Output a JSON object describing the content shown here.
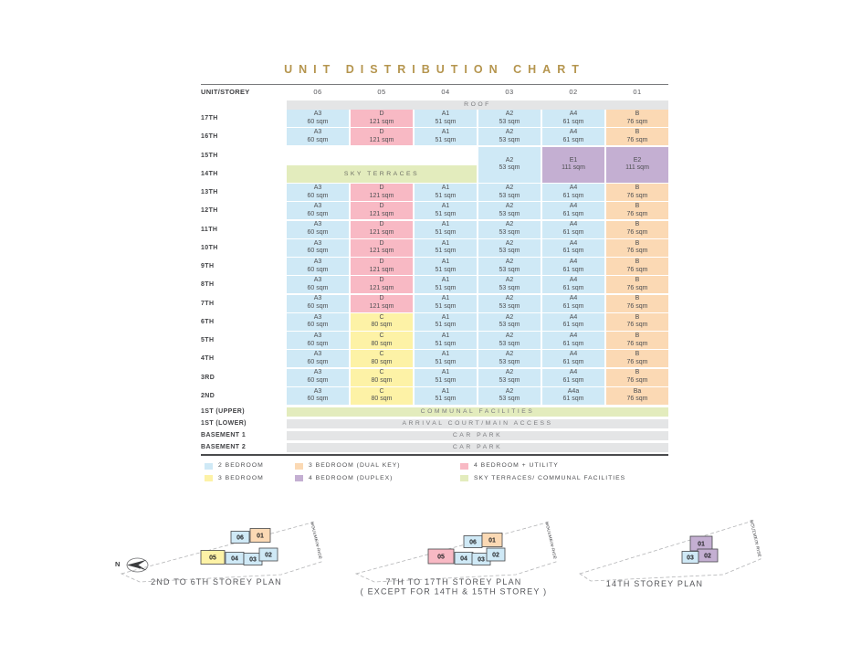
{
  "title": "UNIT DISTRIBUTION CHART",
  "colors": {
    "2_bedroom": "#cfe9f6",
    "3_bedroom": "#fdf2a6",
    "3_bedroom_dual_key": "#fbd9b4",
    "4_bedroom_duplex": "#c4afd2",
    "4_bedroom_utility": "#f8b9c4",
    "sky_terraces": "#e3ecbd",
    "facility_bar": "#e4e5e6",
    "title_gold": "#b5954e"
  },
  "table": {
    "corner_label": "UNIT/STOREY",
    "columns": [
      "06",
      "05",
      "04",
      "03",
      "02",
      "01"
    ],
    "roof": {
      "label": "ROOF"
    },
    "storey_rows": [
      {
        "storey": "17TH",
        "cells": [
          [
            "A3",
            "60 sqm",
            "2_bedroom"
          ],
          [
            "D",
            "121 sqm",
            "4_bedroom_utility"
          ],
          [
            "A1",
            "51 sqm",
            "2_bedroom"
          ],
          [
            "A2",
            "53 sqm",
            "2_bedroom"
          ],
          [
            "A4",
            "61 sqm",
            "2_bedroom"
          ],
          [
            "B",
            "76 sqm",
            "3_bedroom_dual_key"
          ]
        ]
      },
      {
        "storey": "16TH",
        "cells": [
          [
            "A3",
            "60 sqm",
            "2_bedroom"
          ],
          [
            "D",
            "121 sqm",
            "4_bedroom_utility"
          ],
          [
            "A1",
            "51 sqm",
            "2_bedroom"
          ],
          [
            "A2",
            "53 sqm",
            "2_bedroom"
          ],
          [
            "A4",
            "61 sqm",
            "2_bedroom"
          ],
          [
            "B",
            "76 sqm",
            "3_bedroom_dual_key"
          ]
        ]
      },
      {
        "storey": "15TH",
        "special": true
      },
      {
        "storey": "14TH",
        "special": true
      },
      {
        "storey": "13TH",
        "cells": [
          [
            "A3",
            "60 sqm",
            "2_bedroom"
          ],
          [
            "D",
            "121 sqm",
            "4_bedroom_utility"
          ],
          [
            "A1",
            "51 sqm",
            "2_bedroom"
          ],
          [
            "A2",
            "53 sqm",
            "2_bedroom"
          ],
          [
            "A4",
            "61 sqm",
            "2_bedroom"
          ],
          [
            "B",
            "76 sqm",
            "3_bedroom_dual_key"
          ]
        ]
      },
      {
        "storey": "12TH",
        "cells": [
          [
            "A3",
            "60 sqm",
            "2_bedroom"
          ],
          [
            "D",
            "121 sqm",
            "4_bedroom_utility"
          ],
          [
            "A1",
            "51 sqm",
            "2_bedroom"
          ],
          [
            "A2",
            "53 sqm",
            "2_bedroom"
          ],
          [
            "A4",
            "61 sqm",
            "2_bedroom"
          ],
          [
            "B",
            "76 sqm",
            "3_bedroom_dual_key"
          ]
        ]
      },
      {
        "storey": "11TH",
        "cells": [
          [
            "A3",
            "60 sqm",
            "2_bedroom"
          ],
          [
            "D",
            "121 sqm",
            "4_bedroom_utility"
          ],
          [
            "A1",
            "51 sqm",
            "2_bedroom"
          ],
          [
            "A2",
            "53 sqm",
            "2_bedroom"
          ],
          [
            "A4",
            "61 sqm",
            "2_bedroom"
          ],
          [
            "B",
            "76 sqm",
            "3_bedroom_dual_key"
          ]
        ]
      },
      {
        "storey": "10TH",
        "cells": [
          [
            "A3",
            "60 sqm",
            "2_bedroom"
          ],
          [
            "D",
            "121 sqm",
            "4_bedroom_utility"
          ],
          [
            "A1",
            "51 sqm",
            "2_bedroom"
          ],
          [
            "A2",
            "53 sqm",
            "2_bedroom"
          ],
          [
            "A4",
            "61 sqm",
            "2_bedroom"
          ],
          [
            "B",
            "76 sqm",
            "3_bedroom_dual_key"
          ]
        ]
      },
      {
        "storey": "9TH",
        "cells": [
          [
            "A3",
            "60 sqm",
            "2_bedroom"
          ],
          [
            "D",
            "121 sqm",
            "4_bedroom_utility"
          ],
          [
            "A1",
            "51 sqm",
            "2_bedroom"
          ],
          [
            "A2",
            "53 sqm",
            "2_bedroom"
          ],
          [
            "A4",
            "61 sqm",
            "2_bedroom"
          ],
          [
            "B",
            "76 sqm",
            "3_bedroom_dual_key"
          ]
        ]
      },
      {
        "storey": "8TH",
        "cells": [
          [
            "A3",
            "60 sqm",
            "2_bedroom"
          ],
          [
            "D",
            "121 sqm",
            "4_bedroom_utility"
          ],
          [
            "A1",
            "51 sqm",
            "2_bedroom"
          ],
          [
            "A2",
            "53 sqm",
            "2_bedroom"
          ],
          [
            "A4",
            "61 sqm",
            "2_bedroom"
          ],
          [
            "B",
            "76 sqm",
            "3_bedroom_dual_key"
          ]
        ]
      },
      {
        "storey": "7TH",
        "cells": [
          [
            "A3",
            "60 sqm",
            "2_bedroom"
          ],
          [
            "D",
            "121 sqm",
            "4_bedroom_utility"
          ],
          [
            "A1",
            "51 sqm",
            "2_bedroom"
          ],
          [
            "A2",
            "53 sqm",
            "2_bedroom"
          ],
          [
            "A4",
            "61 sqm",
            "2_bedroom"
          ],
          [
            "B",
            "76 sqm",
            "3_bedroom_dual_key"
          ]
        ]
      },
      {
        "storey": "6TH",
        "cells": [
          [
            "A3",
            "60 sqm",
            "2_bedroom"
          ],
          [
            "C",
            "80 sqm",
            "3_bedroom"
          ],
          [
            "A1",
            "51 sqm",
            "2_bedroom"
          ],
          [
            "A2",
            "53 sqm",
            "2_bedroom"
          ],
          [
            "A4",
            "61 sqm",
            "2_bedroom"
          ],
          [
            "B",
            "76 sqm",
            "3_bedroom_dual_key"
          ]
        ]
      },
      {
        "storey": "5TH",
        "cells": [
          [
            "A3",
            "60 sqm",
            "2_bedroom"
          ],
          [
            "C",
            "80 sqm",
            "3_bedroom"
          ],
          [
            "A1",
            "51 sqm",
            "2_bedroom"
          ],
          [
            "A2",
            "53 sqm",
            "2_bedroom"
          ],
          [
            "A4",
            "61 sqm",
            "2_bedroom"
          ],
          [
            "B",
            "76 sqm",
            "3_bedroom_dual_key"
          ]
        ]
      },
      {
        "storey": "4TH",
        "cells": [
          [
            "A3",
            "60 sqm",
            "2_bedroom"
          ],
          [
            "C",
            "80 sqm",
            "3_bedroom"
          ],
          [
            "A1",
            "51 sqm",
            "2_bedroom"
          ],
          [
            "A2",
            "53 sqm",
            "2_bedroom"
          ],
          [
            "A4",
            "61 sqm",
            "2_bedroom"
          ],
          [
            "B",
            "76 sqm",
            "3_bedroom_dual_key"
          ]
        ]
      },
      {
        "storey": "3RD",
        "cells": [
          [
            "A3",
            "60 sqm",
            "2_bedroom"
          ],
          [
            "C",
            "80 sqm",
            "3_bedroom"
          ],
          [
            "A1",
            "51 sqm",
            "2_bedroom"
          ],
          [
            "A2",
            "53 sqm",
            "2_bedroom"
          ],
          [
            "A4",
            "61 sqm",
            "2_bedroom"
          ],
          [
            "B",
            "76 sqm",
            "3_bedroom_dual_key"
          ]
        ]
      },
      {
        "storey": "2ND",
        "cells": [
          [
            "A3",
            "60 sqm",
            "2_bedroom"
          ],
          [
            "C",
            "80 sqm",
            "3_bedroom"
          ],
          [
            "A1",
            "51 sqm",
            "2_bedroom"
          ],
          [
            "A2",
            "53 sqm",
            "2_bedroom"
          ],
          [
            "A4a",
            "61 sqm",
            "2_bedroom"
          ],
          [
            "Ba",
            "76 sqm",
            "3_bedroom_dual_key"
          ]
        ]
      }
    ],
    "merged_14_15": {
      "sky_label": "SKY TERRACES",
      "cells": [
        [
          "A2",
          "53 sqm",
          "2_bedroom"
        ],
        [
          "E1",
          "111 sqm",
          "4_bedroom_duplex"
        ],
        [
          "E2",
          "111 sqm",
          "4_bedroom_duplex"
        ]
      ]
    },
    "facility_rows": [
      {
        "storey": "1ST (UPPER)",
        "label": "COMMUNAL FACILITIES",
        "type": "sky_terraces"
      },
      {
        "storey": "1ST (LOWER)",
        "label": "ARRIVAL COURT/MAIN ACCESS",
        "type": "facility_bar"
      },
      {
        "storey": "BASEMENT 1",
        "label": "CAR PARK",
        "type": "facility_bar"
      },
      {
        "storey": "BASEMENT 2",
        "label": "CAR PARK",
        "type": "facility_bar"
      }
    ]
  },
  "legend": {
    "rows": [
      [
        {
          "label": "2 BEDROOM",
          "type": "2_bedroom"
        },
        {
          "label": "3 BEDROOM (DUAL KEY)",
          "type": "3_bedroom_dual_key"
        },
        {
          "label": "4 BEDROOM + UTILITY",
          "type": "4_bedroom_utility"
        }
      ],
      [
        {
          "label": "3 BEDROOM",
          "type": "3_bedroom"
        },
        {
          "label": "4 BEDROOM (DUPLEX)",
          "type": "4_bedroom_duplex"
        },
        {
          "label": "SKY TERRACES/ COMMUNAL FACILITIES",
          "type": "sky_terraces"
        }
      ]
    ]
  },
  "plans": [
    {
      "caption": [
        "2ND TO 6TH STOREY PLAN"
      ],
      "road": "MOULMEIN RISE",
      "units": [
        {
          "no": "06",
          "type": "2_bedroom"
        },
        {
          "no": "01",
          "type": "3_bedroom_dual_key"
        },
        {
          "no": "05",
          "type": "3_bedroom"
        },
        {
          "no": "04",
          "type": "2_bedroom"
        },
        {
          "no": "03",
          "type": "2_bedroom"
        },
        {
          "no": "02",
          "type": "2_bedroom"
        }
      ]
    },
    {
      "caption": [
        "7TH TO 17TH STOREY PLAN",
        "( EXCEPT FOR 14TH & 15TH STOREY )"
      ],
      "road": "MOULMEIN RISE",
      "units": [
        {
          "no": "06",
          "type": "2_bedroom"
        },
        {
          "no": "01",
          "type": "3_bedroom_dual_key"
        },
        {
          "no": "05",
          "type": "4_bedroom_utility"
        },
        {
          "no": "04",
          "type": "2_bedroom"
        },
        {
          "no": "03",
          "type": "2_bedroom"
        },
        {
          "no": "02",
          "type": "2_bedroom"
        }
      ]
    },
    {
      "caption": [
        "14TH STOREY PLAN"
      ],
      "road": "MOULMEIN RISE",
      "units": [
        {
          "no": "01",
          "type": "4_bedroom_duplex"
        },
        {
          "no": "02",
          "type": "4_bedroom_duplex"
        },
        {
          "no": "03",
          "type": "2_bedroom"
        }
      ]
    }
  ],
  "compass": {
    "label": "N"
  }
}
